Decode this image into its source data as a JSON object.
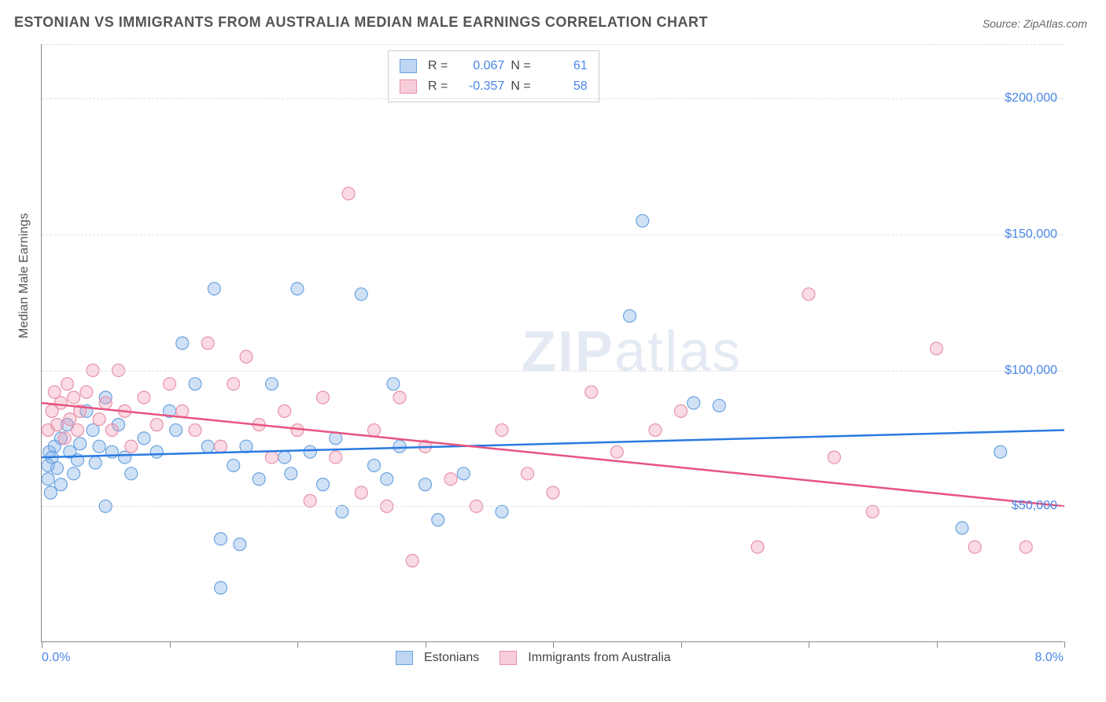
{
  "title": "ESTONIAN VS IMMIGRANTS FROM AUSTRALIA MEDIAN MALE EARNINGS CORRELATION CHART",
  "source_prefix": "Source: ",
  "source_name": "ZipAtlas.com",
  "y_axis_title": "Median Male Earnings",
  "watermark": {
    "bold": "ZIP",
    "light": "atlas"
  },
  "chart": {
    "type": "scatter",
    "xlim": [
      0,
      8
    ],
    "ylim": [
      0,
      220000
    ],
    "x_tick_positions": [
      0,
      1,
      2,
      3,
      4,
      5,
      6,
      7,
      8
    ],
    "x_label_min": "0.0%",
    "x_label_max": "8.0%",
    "y_gridlines": [
      50000,
      100000,
      150000,
      200000
    ],
    "y_tick_labels": [
      "$50,000",
      "$100,000",
      "$150,000",
      "$200,000"
    ],
    "background_color": "#ffffff",
    "grid_color": "#dddddd",
    "series": [
      {
        "key": "estonians",
        "name": "Estonians",
        "color_fill": "rgba(120,170,230,0.35)",
        "color_stroke": "#6aa3e0",
        "swatch_fill": "#bfd6f2",
        "swatch_border": "#6aa3e0",
        "r_label": "R =",
        "r_value": "0.067",
        "n_label": "N =",
        "n_value": "61",
        "marker_radius": 8,
        "trend": {
          "y_at_xmin": 68000,
          "y_at_xmax": 78000,
          "color": "#2a7ae2",
          "width": 2.5
        },
        "points": [
          [
            0.05,
            60000
          ],
          [
            0.05,
            65000
          ],
          [
            0.06,
            70000
          ],
          [
            0.07,
            55000
          ],
          [
            0.08,
            68000
          ],
          [
            0.1,
            72000
          ],
          [
            0.12,
            64000
          ],
          [
            0.15,
            58000
          ],
          [
            0.15,
            75000
          ],
          [
            0.2,
            80000
          ],
          [
            0.22,
            70000
          ],
          [
            0.25,
            62000
          ],
          [
            0.28,
            67000
          ],
          [
            0.3,
            73000
          ],
          [
            0.35,
            85000
          ],
          [
            0.4,
            78000
          ],
          [
            0.42,
            66000
          ],
          [
            0.45,
            72000
          ],
          [
            0.5,
            90000
          ],
          [
            0.5,
            50000
          ],
          [
            0.55,
            70000
          ],
          [
            0.6,
            80000
          ],
          [
            0.65,
            68000
          ],
          [
            0.7,
            62000
          ],
          [
            0.8,
            75000
          ],
          [
            0.9,
            70000
          ],
          [
            1.0,
            85000
          ],
          [
            1.05,
            78000
          ],
          [
            1.1,
            110000
          ],
          [
            1.2,
            95000
          ],
          [
            1.3,
            72000
          ],
          [
            1.35,
            130000
          ],
          [
            1.4,
            38000
          ],
          [
            1.4,
            20000
          ],
          [
            1.5,
            65000
          ],
          [
            1.55,
            36000
          ],
          [
            1.6,
            72000
          ],
          [
            1.7,
            60000
          ],
          [
            1.8,
            95000
          ],
          [
            1.9,
            68000
          ],
          [
            1.95,
            62000
          ],
          [
            2.0,
            130000
          ],
          [
            2.1,
            70000
          ],
          [
            2.2,
            58000
          ],
          [
            2.3,
            75000
          ],
          [
            2.35,
            48000
          ],
          [
            2.5,
            128000
          ],
          [
            2.6,
            65000
          ],
          [
            2.7,
            60000
          ],
          [
            2.75,
            95000
          ],
          [
            2.8,
            72000
          ],
          [
            3.0,
            58000
          ],
          [
            3.1,
            45000
          ],
          [
            3.3,
            62000
          ],
          [
            3.6,
            48000
          ],
          [
            4.6,
            120000
          ],
          [
            4.7,
            155000
          ],
          [
            5.1,
            88000
          ],
          [
            5.3,
            87000
          ],
          [
            7.2,
            42000
          ],
          [
            7.5,
            70000
          ]
        ]
      },
      {
        "key": "immigrants",
        "name": "Immigrants from Australia",
        "color_fill": "rgba(240,150,175,0.35)",
        "color_stroke": "#e792ab",
        "swatch_fill": "#f7cdd9",
        "swatch_border": "#e792ab",
        "r_label": "R =",
        "r_value": "-0.357",
        "n_label": "N =",
        "n_value": "58",
        "marker_radius": 8,
        "trend": {
          "y_at_xmin": 88000,
          "y_at_xmax": 50000,
          "color": "#e75480",
          "width": 2.5
        },
        "points": [
          [
            0.05,
            78000
          ],
          [
            0.08,
            85000
          ],
          [
            0.1,
            92000
          ],
          [
            0.12,
            80000
          ],
          [
            0.15,
            88000
          ],
          [
            0.18,
            75000
          ],
          [
            0.2,
            95000
          ],
          [
            0.22,
            82000
          ],
          [
            0.25,
            90000
          ],
          [
            0.28,
            78000
          ],
          [
            0.3,
            85000
          ],
          [
            0.35,
            92000
          ],
          [
            0.4,
            100000
          ],
          [
            0.45,
            82000
          ],
          [
            0.5,
            88000
          ],
          [
            0.55,
            78000
          ],
          [
            0.6,
            100000
          ],
          [
            0.65,
            85000
          ],
          [
            0.7,
            72000
          ],
          [
            0.8,
            90000
          ],
          [
            0.9,
            80000
          ],
          [
            1.0,
            95000
          ],
          [
            1.1,
            85000
          ],
          [
            1.2,
            78000
          ],
          [
            1.3,
            110000
          ],
          [
            1.4,
            72000
          ],
          [
            1.5,
            95000
          ],
          [
            1.6,
            105000
          ],
          [
            1.7,
            80000
          ],
          [
            1.8,
            68000
          ],
          [
            1.9,
            85000
          ],
          [
            2.0,
            78000
          ],
          [
            2.1,
            52000
          ],
          [
            2.2,
            90000
          ],
          [
            2.3,
            68000
          ],
          [
            2.4,
            165000
          ],
          [
            2.5,
            55000
          ],
          [
            2.6,
            78000
          ],
          [
            2.7,
            50000
          ],
          [
            2.8,
            90000
          ],
          [
            2.9,
            30000
          ],
          [
            3.0,
            72000
          ],
          [
            3.2,
            60000
          ],
          [
            3.4,
            50000
          ],
          [
            3.6,
            78000
          ],
          [
            3.8,
            62000
          ],
          [
            4.0,
            55000
          ],
          [
            4.3,
            92000
          ],
          [
            4.5,
            70000
          ],
          [
            4.8,
            78000
          ],
          [
            5.0,
            85000
          ],
          [
            5.6,
            35000
          ],
          [
            6.0,
            128000
          ],
          [
            6.2,
            68000
          ],
          [
            6.5,
            48000
          ],
          [
            7.0,
            108000
          ],
          [
            7.3,
            35000
          ],
          [
            7.7,
            35000
          ]
        ]
      }
    ]
  }
}
